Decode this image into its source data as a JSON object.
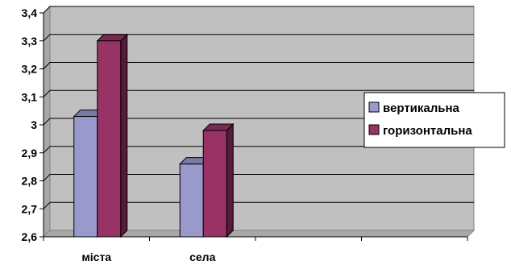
{
  "chart_data": {
    "type": "bar",
    "three_d": true,
    "categories": [
      "міста",
      "села"
    ],
    "category_slots": 4,
    "series": [
      {
        "name": "вертикальна",
        "values": [
          3.03,
          2.86
        ],
        "color": "#9999CC"
      },
      {
        "name": "горизонтальна",
        "values": [
          3.3,
          2.98
        ],
        "color": "#993366"
      }
    ],
    "ylim": [
      2.6,
      3.4
    ],
    "yticks": [
      "2,6",
      "2,7",
      "2,8",
      "2,9",
      "3",
      "3,1",
      "3,2",
      "3,3",
      "3,4"
    ],
    "grid": true,
    "legend": "right",
    "plot_background": "#C0C0C0"
  }
}
